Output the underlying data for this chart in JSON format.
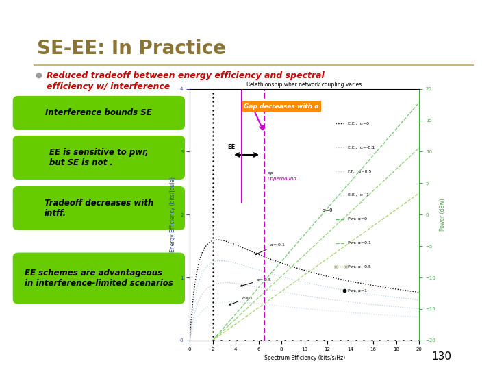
{
  "title": "SE-EE: In Practice",
  "title_color": "#8B7536",
  "bullet_text_line1": "Reduced tradeoff between energy efficiency and spectral",
  "bullet_text_line2": "efficiency w/ interference",
  "bullet_color": "#CC0000",
  "green_boxes": [
    "Interference bounds SE",
    "EE is sensitive to pwr,\nbut SE is not .",
    "Tradeoff decreases with\nintff.",
    "EE schemes are advantageous\nin interference-limited scenarios"
  ],
  "green_box_color": "#66CC00",
  "orange_box_text": "Gap decreases with α",
  "orange_box_color": "#FF8C00",
  "graph_title": "Relathionship wher network coupling varies",
  "background_color": "#FFFFFF",
  "border_color": "#E87722",
  "page_number": "130",
  "legend_items": [
    "E.E.,  α=0",
    "E.E.,  α=-0.1",
    "F.F.,  α=0.5",
    "E.E.,  α−1",
    "Pwr. α=0",
    "Pwr. α=0.1",
    "Pwr. α−0.5",
    "Pwr. α=1"
  ],
  "pwr_label_color": "#44AA44"
}
